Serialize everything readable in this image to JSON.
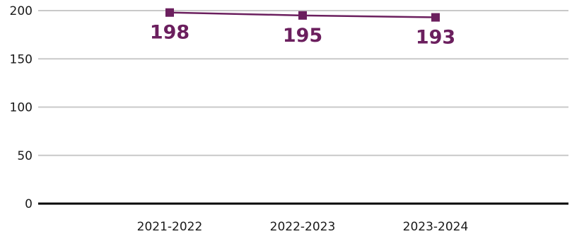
{
  "chart_data": {
    "type": "line",
    "title": "",
    "xlabel": "",
    "ylabel": "",
    "categories": [
      "2021-2022",
      "2022-2023",
      "2023-2024"
    ],
    "series": [
      {
        "values": [
          198,
          195,
          193
        ]
      }
    ],
    "data_labels": [
      "198",
      "195",
      "193"
    ],
    "ylim": [
      0,
      200
    ],
    "yticks": [
      0,
      50,
      100,
      150,
      200
    ],
    "ytick_labels": [
      "0",
      "50",
      "100",
      "150",
      "200"
    ],
    "grid": true,
    "legend": "none",
    "marker": "square",
    "colors": {
      "series": "#6b1f5e",
      "grid": "#c9c9c9",
      "baseline": "#000000"
    }
  }
}
